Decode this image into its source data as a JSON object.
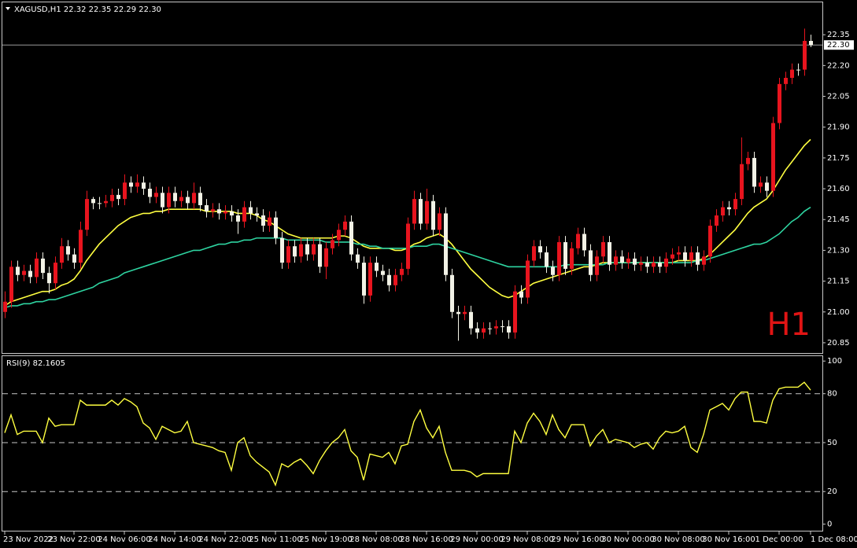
{
  "chart_data": [
    {
      "type": "candlestick",
      "title": "XAGUSD,H1  22.32 22.35 22.29 22.30",
      "annotation": "H1",
      "up_color": "#e8141e",
      "down_color": "#f2f2e6",
      "categories": [
        "23 Nov 2022",
        null,
        null,
        null,
        null,
        null,
        null,
        null,
        null,
        null,
        null,
        "23 Nov 22:00",
        null,
        null,
        null,
        null,
        null,
        null,
        null,
        "24 Nov 06:00",
        null,
        null,
        null,
        null,
        null,
        null,
        null,
        "24 Nov 14:00",
        null,
        null,
        null,
        null,
        null,
        null,
        null,
        "24 Nov 22:00",
        null,
        null,
        null,
        null,
        null,
        null,
        null,
        "25 Nov 11:00",
        null,
        null,
        null,
        null,
        null,
        null,
        null,
        "25 Nov 19:00",
        null,
        null,
        null,
        null,
        null,
        null,
        null,
        "28 Nov 08:00",
        null,
        null,
        null,
        null,
        null,
        null,
        null,
        "28 Nov 16:00",
        null,
        null,
        null,
        null,
        null,
        null,
        null,
        "29 Nov 00:00",
        null,
        null,
        null,
        null,
        null,
        null,
        null,
        "29 Nov 08:00",
        null,
        null,
        null,
        null,
        null,
        null,
        null,
        "29 Nov 16:00",
        null,
        null,
        null,
        null,
        null,
        null,
        null,
        "30 Nov 00:00",
        null,
        null,
        null,
        null,
        null,
        null,
        null,
        "30 Nov 08:00",
        null,
        null,
        null,
        null,
        null,
        null,
        null,
        "30 Nov 16:00",
        null,
        null,
        null,
        null,
        null,
        null,
        null,
        "1 Dec 00:00",
        null,
        null,
        null,
        null,
        "1 Dec 08:00"
      ],
      "open": [
        21.0,
        21.05,
        21.22,
        21.18,
        21.2,
        21.17,
        21.26,
        21.19,
        21.14,
        21.24,
        21.32,
        21.28,
        21.24,
        21.4,
        21.55,
        21.53,
        21.53,
        21.54,
        21.57,
        21.55,
        21.63,
        21.61,
        21.63,
        21.6,
        21.56,
        21.58,
        21.51,
        21.58,
        21.54,
        21.56,
        21.53,
        21.58,
        21.52,
        21.49,
        21.5,
        21.48,
        21.49,
        21.47,
        21.44,
        21.51,
        21.48,
        21.47,
        21.42,
        21.46,
        21.36,
        21.24,
        21.32,
        21.27,
        21.33,
        21.28,
        21.33,
        21.22,
        21.31,
        21.35,
        21.4,
        21.44,
        21.28,
        21.24,
        21.08,
        21.24,
        21.2,
        21.18,
        21.13,
        21.18,
        21.21,
        21.43,
        21.55,
        21.43,
        21.54,
        21.4,
        21.48,
        21.18,
        21.0,
        20.99,
        21.0,
        20.92,
        20.9,
        20.92,
        20.92,
        20.93,
        20.93,
        20.9,
        21.1,
        21.07,
        21.25,
        21.32,
        21.29,
        21.22,
        21.18,
        21.34,
        21.21,
        21.31,
        21.38,
        21.3,
        21.18,
        21.27,
        21.34,
        21.23,
        21.27,
        21.24,
        21.26,
        21.23,
        21.24,
        21.22,
        21.24,
        21.22,
        21.26,
        21.28,
        21.29,
        21.25,
        21.29,
        21.23,
        21.27,
        21.42,
        21.47,
        21.51,
        21.5,
        21.55,
        21.72,
        21.75,
        21.61,
        21.63,
        21.59,
        21.92,
        22.11,
        22.14,
        22.18,
        22.18,
        22.32
      ],
      "high": [
        21.1,
        21.25,
        21.25,
        21.23,
        21.23,
        21.29,
        21.29,
        21.22,
        21.27,
        21.36,
        21.35,
        21.31,
        21.44,
        21.59,
        21.56,
        21.56,
        21.57,
        21.6,
        21.6,
        21.67,
        21.66,
        21.67,
        21.66,
        21.63,
        21.61,
        21.61,
        21.61,
        21.61,
        21.59,
        21.59,
        21.63,
        21.61,
        21.55,
        21.53,
        21.53,
        21.52,
        21.52,
        21.5,
        21.54,
        21.54,
        21.51,
        21.5,
        21.49,
        21.49,
        21.39,
        21.35,
        21.35,
        21.36,
        21.36,
        21.36,
        21.36,
        21.34,
        21.38,
        21.43,
        21.47,
        21.47,
        21.31,
        21.27,
        21.27,
        21.27,
        21.23,
        21.21,
        21.21,
        21.24,
        21.46,
        21.59,
        21.58,
        21.6,
        21.57,
        21.51,
        21.51,
        21.21,
        21.03,
        21.03,
        21.03,
        20.95,
        20.95,
        20.95,
        20.96,
        20.96,
        20.96,
        21.13,
        21.13,
        21.28,
        21.35,
        21.35,
        21.32,
        21.25,
        21.37,
        21.37,
        21.34,
        21.41,
        21.41,
        21.33,
        21.3,
        21.37,
        21.37,
        21.3,
        21.3,
        21.29,
        21.29,
        21.27,
        21.27,
        21.27,
        21.27,
        21.29,
        21.31,
        21.32,
        21.32,
        21.32,
        21.32,
        21.3,
        21.45,
        21.5,
        21.54,
        21.54,
        21.58,
        21.85,
        21.78,
        21.78,
        21.66,
        21.66,
        21.95,
        22.14,
        22.17,
        22.21,
        22.21,
        22.38,
        22.35
      ],
      "low": [
        20.97,
        21.02,
        21.15,
        21.15,
        21.14,
        21.14,
        21.16,
        21.09,
        21.11,
        21.21,
        21.25,
        21.21,
        21.21,
        21.37,
        21.5,
        21.5,
        21.51,
        21.51,
        21.52,
        21.52,
        21.58,
        21.58,
        21.57,
        21.53,
        21.53,
        21.48,
        21.48,
        21.51,
        21.51,
        21.5,
        21.5,
        21.49,
        21.46,
        21.46,
        21.45,
        21.45,
        21.44,
        21.38,
        21.41,
        21.45,
        21.44,
        21.39,
        21.39,
        21.33,
        21.21,
        21.21,
        21.24,
        21.24,
        21.25,
        21.25,
        21.19,
        21.16,
        21.28,
        21.32,
        21.37,
        21.25,
        21.21,
        21.04,
        21.05,
        21.17,
        21.15,
        21.1,
        21.1,
        21.15,
        21.18,
        21.4,
        21.4,
        21.4,
        21.37,
        21.37,
        21.15,
        20.97,
        20.86,
        20.96,
        20.89,
        20.87,
        20.87,
        20.89,
        20.89,
        20.9,
        20.87,
        20.87,
        21.04,
        21.04,
        21.22,
        21.26,
        21.19,
        21.15,
        21.15,
        21.18,
        21.18,
        21.28,
        21.27,
        21.15,
        21.15,
        21.24,
        21.2,
        21.2,
        21.21,
        21.21,
        21.2,
        21.2,
        21.19,
        21.19,
        21.19,
        21.19,
        21.23,
        21.25,
        21.22,
        21.22,
        21.2,
        21.2,
        21.24,
        21.39,
        21.44,
        21.47,
        21.47,
        21.52,
        21.69,
        21.58,
        21.58,
        21.56,
        21.56,
        21.89,
        22.08,
        22.11,
        22.15,
        22.15,
        22.29
      ],
      "close": [
        21.05,
        21.22,
        21.18,
        21.2,
        21.17,
        21.26,
        21.19,
        21.14,
        21.24,
        21.32,
        21.28,
        21.24,
        21.4,
        21.55,
        21.53,
        21.53,
        21.54,
        21.57,
        21.55,
        21.63,
        21.61,
        21.63,
        21.6,
        21.56,
        21.58,
        21.51,
        21.58,
        21.54,
        21.56,
        21.53,
        21.58,
        21.52,
        21.49,
        21.5,
        21.48,
        21.49,
        21.47,
        21.44,
        21.51,
        21.48,
        21.47,
        21.42,
        21.46,
        21.36,
        21.24,
        21.32,
        21.27,
        21.33,
        21.28,
        21.33,
        21.22,
        21.31,
        21.35,
        21.4,
        21.44,
        21.28,
        21.24,
        21.08,
        21.24,
        21.2,
        21.18,
        21.13,
        21.18,
        21.21,
        21.43,
        21.55,
        21.43,
        21.54,
        21.4,
        21.48,
        21.18,
        21.0,
        20.99,
        21.0,
        20.92,
        20.9,
        20.92,
        20.92,
        20.93,
        20.93,
        20.9,
        21.1,
        21.07,
        21.25,
        21.32,
        21.29,
        21.22,
        21.18,
        21.34,
        21.21,
        21.31,
        21.38,
        21.3,
        21.18,
        21.27,
        21.34,
        21.23,
        21.27,
        21.24,
        21.26,
        21.23,
        21.24,
        21.22,
        21.24,
        21.22,
        21.26,
        21.28,
        21.29,
        21.25,
        21.29,
        21.23,
        21.27,
        21.42,
        21.47,
        21.51,
        21.5,
        21.55,
        21.72,
        21.75,
        21.61,
        21.63,
        21.59,
        21.92,
        22.11,
        22.14,
        22.18,
        22.18,
        22.32,
        22.3
      ],
      "lines": [
        {
          "color": "#ffff40",
          "values": [
            21.03,
            21.05,
            21.06,
            21.07,
            21.08,
            21.09,
            21.1,
            21.1,
            21.11,
            21.13,
            21.14,
            21.16,
            21.2,
            21.25,
            21.29,
            21.33,
            21.36,
            21.39,
            21.42,
            21.44,
            21.46,
            21.47,
            21.48,
            21.48,
            21.49,
            21.49,
            21.5,
            21.5,
            21.5,
            21.5,
            21.5,
            21.5,
            21.49,
            21.49,
            21.49,
            21.49,
            21.49,
            21.48,
            21.48,
            21.48,
            21.47,
            21.45,
            21.44,
            21.42,
            21.4,
            21.38,
            21.37,
            21.36,
            21.36,
            21.36,
            21.36,
            21.36,
            21.36,
            21.37,
            21.37,
            21.36,
            21.34,
            21.32,
            21.31,
            21.31,
            21.31,
            21.31,
            21.3,
            21.3,
            21.31,
            21.33,
            21.34,
            21.36,
            21.37,
            21.38,
            21.36,
            21.33,
            21.29,
            21.25,
            21.21,
            21.18,
            21.15,
            21.12,
            21.1,
            21.08,
            21.07,
            21.08,
            21.1,
            21.12,
            21.14,
            21.15,
            21.16,
            21.17,
            21.18,
            21.19,
            21.2,
            21.21,
            21.22,
            21.22,
            21.23,
            21.24,
            21.24,
            21.24,
            21.24,
            21.24,
            21.24,
            21.24,
            21.24,
            21.24,
            21.24,
            21.24,
            21.24,
            21.25,
            21.25,
            21.25,
            21.25,
            21.26,
            21.28,
            21.31,
            21.34,
            21.37,
            21.4,
            21.44,
            21.48,
            21.51,
            21.53,
            21.55,
            21.59,
            21.64,
            21.69,
            21.73,
            21.77,
            21.81,
            21.84
          ]
        },
        {
          "color": "#2ed3a0",
          "values": [
            21.02,
            21.03,
            21.03,
            21.04,
            21.04,
            21.05,
            21.05,
            21.06,
            21.06,
            21.07,
            21.08,
            21.09,
            21.1,
            21.11,
            21.12,
            21.14,
            21.15,
            21.16,
            21.17,
            21.19,
            21.2,
            21.21,
            21.22,
            21.23,
            21.24,
            21.25,
            21.26,
            21.27,
            21.28,
            21.29,
            21.3,
            21.3,
            21.31,
            21.32,
            21.33,
            21.33,
            21.34,
            21.34,
            21.35,
            21.35,
            21.36,
            21.36,
            21.36,
            21.36,
            21.36,
            21.35,
            21.35,
            21.35,
            21.35,
            21.35,
            21.35,
            21.34,
            21.34,
            21.34,
            21.34,
            21.34,
            21.33,
            21.33,
            21.32,
            21.32,
            21.31,
            21.31,
            21.31,
            21.31,
            21.31,
            21.32,
            21.32,
            21.32,
            21.33,
            21.33,
            21.32,
            21.31,
            21.3,
            21.29,
            21.28,
            21.27,
            21.26,
            21.25,
            21.24,
            21.23,
            21.22,
            21.22,
            21.22,
            21.22,
            21.22,
            21.22,
            21.22,
            21.22,
            21.22,
            21.23,
            21.23,
            21.23,
            21.23,
            21.23,
            21.23,
            21.23,
            21.24,
            21.24,
            21.24,
            21.24,
            21.24,
            21.24,
            21.24,
            21.24,
            21.24,
            21.24,
            21.24,
            21.24,
            21.24,
            21.24,
            21.25,
            21.25,
            21.26,
            21.27,
            21.28,
            21.29,
            21.3,
            21.31,
            21.32,
            21.33,
            21.33,
            21.34,
            21.36,
            21.38,
            21.41,
            21.44,
            21.46,
            21.49,
            21.51
          ]
        }
      ],
      "current_price": {
        "value": 22.3,
        "label": "22.30"
      },
      "ylim": [
        20.8,
        22.5
      ],
      "yticks": [
        20.85,
        {
          "value": 21,
          "label": "21.00"
        },
        21.15,
        {
          "value": 21.3,
          "label": "21.30"
        },
        21.45,
        {
          "value": 21.6,
          "label": "21.60"
        },
        21.75,
        {
          "value": 21.9,
          "label": "21.90"
        },
        22.05,
        {
          "value": 22.2,
          "label": "22.20"
        },
        22.35
      ]
    },
    {
      "type": "line",
      "title": "RSI(9) 82.1605",
      "color": "#ffff40",
      "values": [
        56,
        67,
        55,
        57,
        57,
        57,
        50,
        65,
        60,
        61,
        61,
        61,
        76,
        73,
        73,
        73,
        73,
        76,
        73,
        77,
        75,
        72,
        62,
        59,
        52,
        60,
        58,
        56,
        57,
        63,
        50,
        49,
        48,
        47,
        45,
        44,
        33,
        50,
        53,
        42,
        38,
        35,
        32,
        24,
        37,
        35,
        38,
        40,
        36,
        31,
        39,
        45,
        50,
        53,
        58,
        45,
        41,
        27,
        43,
        42,
        41,
        44,
        37,
        48,
        49,
        63,
        70,
        59,
        53,
        60,
        44,
        33,
        33,
        33,
        32,
        29,
        31,
        31,
        31,
        31,
        31,
        57,
        50,
        62,
        68,
        63,
        55,
        67,
        58,
        53,
        61,
        61,
        61,
        48,
        54,
        58,
        50,
        52,
        51,
        50,
        47,
        49,
        50,
        46,
        53,
        57,
        56,
        57,
        60,
        47,
        44,
        55,
        70,
        72,
        74,
        70,
        77,
        81,
        81,
        63,
        63,
        62,
        76,
        83,
        84,
        84,
        84,
        87,
        82.1605
      ],
      "levels": [
        20,
        50,
        80
      ],
      "ylim": [
        -4,
        103
      ],
      "yticks": [
        0,
        20,
        50,
        80,
        100
      ]
    }
  ]
}
